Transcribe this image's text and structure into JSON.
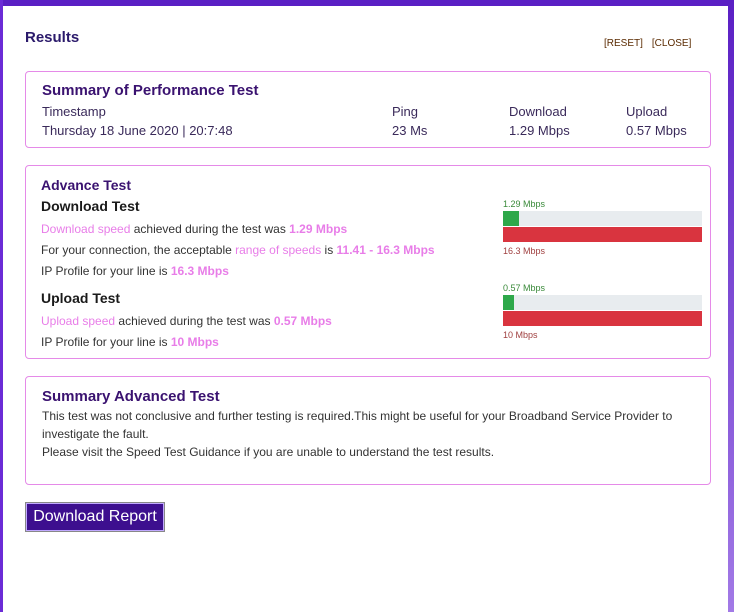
{
  "header": {
    "title": "Results",
    "reset_label": "[RESET]",
    "close_label": "[CLOSE]"
  },
  "summary": {
    "heading": "Summary of Performance Test",
    "timestamp_label": "Timestamp",
    "timestamp_value": "Thursday 18 June 2020 | 20:7:48",
    "ping_label": "Ping",
    "ping_value": "23 Ms",
    "download_label": "Download",
    "download_value": "1.29 Mbps",
    "upload_label": "Upload",
    "upload_value": "0.57 Mbps"
  },
  "advance": {
    "heading": "Advance Test",
    "download": {
      "heading": "Download Test",
      "line1_pre": "Download speed",
      "line1_mid": " achieved during the test was ",
      "line1_val": "1.29 Mbps",
      "line2_pre": "For your connection, the acceptable ",
      "line2_link": "range of speeds",
      "line2_mid": " is ",
      "line2_val": "11.41 - 16.3 Mbps",
      "line3_pre": "IP Profile for your line is ",
      "line3_val": "16.3 Mbps",
      "bar_top_label": "1.29 Mbps",
      "bar_bottom_label": "16.3 Mbps",
      "bar_fraction": 0.079
    },
    "upload": {
      "heading": "Upload Test",
      "line1_pre": "Upload speed",
      "line1_mid": " achieved during the test was ",
      "line1_val": "0.57 Mbps",
      "line2_pre": "IP Profile for your line is ",
      "line2_val": "10 Mbps",
      "bar_top_label": "0.57 Mbps",
      "bar_bottom_label": "10 Mbps",
      "bar_fraction": 0.057
    }
  },
  "summary_advanced": {
    "heading": "Summary Advanced Test",
    "line1": "This test was not conclusive and further testing is required.This might be useful for your Broadband Service Provider to",
    "line2": "investigate the fault.",
    "line3": "Please visit the Speed Test Guidance if you are unable to understand the test results."
  },
  "actions": {
    "download_report_label": "Download Report"
  },
  "colors": {
    "accent": "#3d0f8f",
    "border": "#e58ae8",
    "bar_green": "#2ea84a",
    "bar_red": "#d9343f"
  }
}
